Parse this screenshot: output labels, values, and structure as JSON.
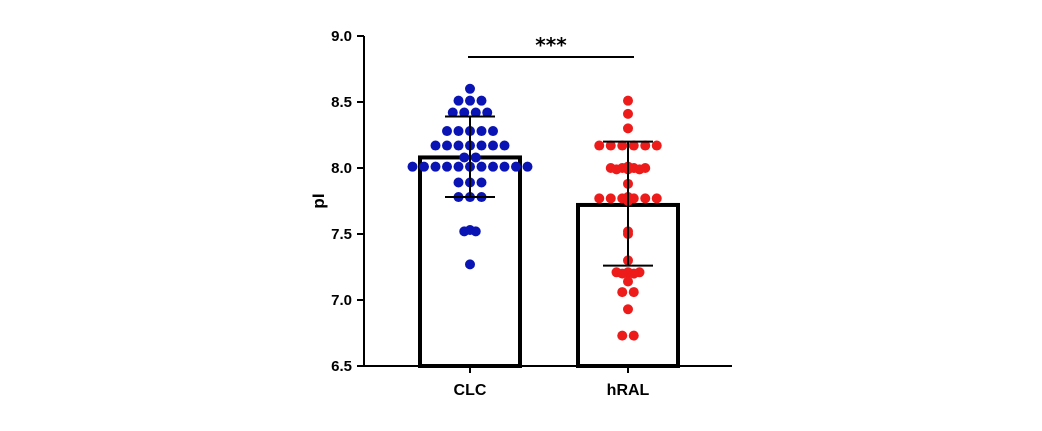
{
  "chart_data": {
    "type": "bar",
    "title": "",
    "xlabel": "",
    "ylabel": "pI",
    "ylim": [
      6.5,
      9.0
    ],
    "yticks": [
      "6.5",
      "7.0",
      "7.5",
      "8.0",
      "8.5",
      "9.0"
    ],
    "categories": [
      "CLC",
      "hRAL"
    ],
    "series": [
      {
        "name": "CLC",
        "mean": 8.08,
        "error_low": 7.78,
        "error_high": 8.39,
        "color": "#0a14b4",
        "points": [
          8.6,
          8.51,
          8.51,
          8.51,
          8.42,
          8.42,
          8.42,
          8.42,
          8.28,
          8.28,
          8.28,
          8.28,
          8.28,
          8.17,
          8.17,
          8.17,
          8.17,
          8.17,
          8.17,
          8.17,
          8.08,
          8.08,
          8.01,
          8.01,
          8.01,
          8.01,
          8.01,
          8.01,
          8.01,
          8.01,
          8.01,
          8.01,
          8.01,
          7.89,
          7.89,
          7.89,
          7.78,
          7.78,
          7.78,
          7.53,
          7.52,
          7.52,
          7.27
        ]
      },
      {
        "name": "hRAL",
        "mean": 7.72,
        "error_low": 7.26,
        "error_high": 8.2,
        "color": "#ee1b1b",
        "points": [
          8.51,
          8.41,
          8.3,
          8.17,
          8.17,
          8.17,
          8.17,
          8.17,
          8.17,
          8.01,
          8.0,
          8.0,
          8.0,
          8.0,
          7.99,
          7.99,
          7.99,
          7.88,
          7.78,
          7.77,
          7.77,
          7.77,
          7.77,
          7.77,
          7.77,
          7.75,
          7.52,
          7.5,
          7.3,
          7.21,
          7.21,
          7.21,
          7.2,
          7.2,
          7.14,
          7.06,
          7.06,
          6.93,
          6.73,
          6.73
        ]
      }
    ],
    "significance": {
      "label": "***",
      "between": [
        "CLC",
        "hRAL"
      ]
    }
  }
}
